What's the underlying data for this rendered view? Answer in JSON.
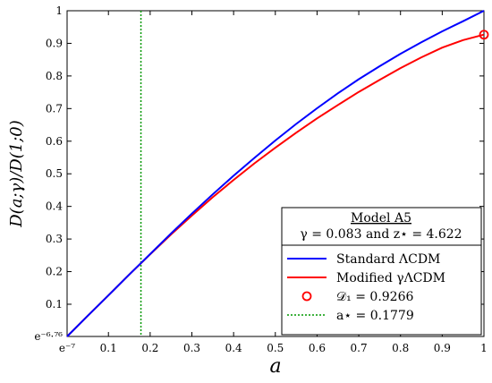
{
  "chart_data": {
    "type": "line",
    "xlabel": "a",
    "ylabel": "D(a;γ)/D(1;0)",
    "xlim": [
      0.000912,
      1.0
    ],
    "ylim": [
      0.00116,
      1.0
    ],
    "grid": false,
    "legend_position": "bottom-right",
    "x_tick_labels": [
      "e⁻⁷",
      "0.1",
      "0.2",
      "0.3",
      "0.4",
      "0.5",
      "0.6",
      "0.7",
      "0.8",
      "0.9",
      "1"
    ],
    "y_tick_labels": [
      "e⁻⁶·⁷⁶",
      "0.1",
      "0.2",
      "0.3",
      "0.4",
      "0.5",
      "0.6",
      "0.7",
      "0.8",
      "0.9",
      "1"
    ],
    "legend": {
      "title": "Model A5",
      "subtitle": "γ = 0.083  and  z⋆ = 4.622",
      "entries": [
        "Standard  ΛCDM",
        "Modified  γΛCDM",
        "𝒟₁ = 0.9266",
        "a⋆ = 0.1779"
      ]
    },
    "series": [
      {
        "name": "Standard  ΛCDM",
        "color": "#0000ff",
        "x": [
          0.000912,
          0.05,
          0.1,
          0.15,
          0.2,
          0.25,
          0.3,
          0.35,
          0.4,
          0.45,
          0.5,
          0.55,
          0.6,
          0.65,
          0.7,
          0.75,
          0.8,
          0.85,
          0.9,
          0.95,
          1.0
        ],
        "y": [
          0.00116,
          0.064,
          0.127,
          0.191,
          0.254,
          0.317,
          0.378,
          0.437,
          0.494,
          0.549,
          0.602,
          0.653,
          0.701,
          0.747,
          0.79,
          0.83,
          0.868,
          0.903,
          0.937,
          0.968,
          1.0
        ]
      },
      {
        "name": "Modified  γΛCDM",
        "color": "#ff0000",
        "x": [
          0.000912,
          0.05,
          0.1,
          0.15,
          0.2,
          0.25,
          0.3,
          0.35,
          0.4,
          0.45,
          0.5,
          0.55,
          0.6,
          0.65,
          0.7,
          0.75,
          0.8,
          0.85,
          0.9,
          0.95,
          1.0
        ],
        "y": [
          0.00116,
          0.064,
          0.127,
          0.191,
          0.253,
          0.314,
          0.372,
          0.428,
          0.481,
          0.532,
          0.58,
          0.626,
          0.67,
          0.711,
          0.751,
          0.788,
          0.824,
          0.857,
          0.887,
          0.91,
          0.9266
        ]
      }
    ],
    "marker": {
      "name": "𝒟₁ = 0.9266",
      "x": 1.0,
      "y": 0.9266,
      "color": "#ff0000"
    },
    "vline": {
      "name": "a⋆ = 0.1779",
      "x": 0.1779,
      "color": "#009900"
    }
  }
}
